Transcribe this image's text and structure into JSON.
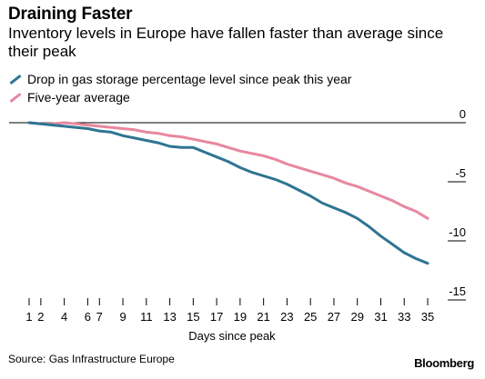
{
  "header": {
    "title": "Draining Faster",
    "subtitle": "Inventory levels in Europe have fallen faster than average since their peak"
  },
  "footer": {
    "source": "Source: Gas Infrastructure Europe",
    "brand": "Bloomberg"
  },
  "chart_data": {
    "type": "line",
    "title": "Draining Faster",
    "subtitle": "Inventory levels in Europe have fallen faster than average since their peak",
    "xlabel": "Days since peak",
    "ylabel": "",
    "xlim": [
      1,
      35
    ],
    "ylim": [
      -15,
      0
    ],
    "x_ticks": [
      1,
      2,
      4,
      6,
      7,
      9,
      11,
      13,
      15,
      17,
      19,
      21,
      23,
      25,
      27,
      29,
      31,
      33,
      35
    ],
    "y_ticks": [
      0,
      -5,
      -10,
      -15
    ],
    "y_tick_labels": [
      "0",
      "-5",
      "-10",
      "-15"
    ],
    "zero_line": true,
    "grid": false,
    "legend_position": "top-left",
    "series": [
      {
        "name": "Drop in gas storage percentage level since peak this year",
        "color": "#2e7592",
        "x": [
          1,
          2,
          3,
          4,
          5,
          6,
          7,
          8,
          9,
          10,
          11,
          12,
          13,
          14,
          15,
          16,
          17,
          18,
          19,
          20,
          21,
          22,
          23,
          24,
          25,
          26,
          27,
          28,
          29,
          30,
          31,
          32,
          33,
          34,
          35
        ],
        "values": [
          0,
          -0.1,
          -0.2,
          -0.3,
          -0.4,
          -0.5,
          -0.7,
          -0.8,
          -1.1,
          -1.3,
          -1.5,
          -1.7,
          -2.0,
          -2.1,
          -2.1,
          -2.5,
          -2.9,
          -3.3,
          -3.8,
          -4.2,
          -4.5,
          -4.8,
          -5.2,
          -5.7,
          -6.2,
          -6.8,
          -7.2,
          -7.6,
          -8.1,
          -8.8,
          -9.6,
          -10.3,
          -11.0,
          -11.5,
          -11.9
        ]
      },
      {
        "name": "Five-year average",
        "color": "#e8879f",
        "x": [
          1,
          2,
          3,
          4,
          5,
          6,
          7,
          8,
          9,
          10,
          11,
          12,
          13,
          14,
          15,
          16,
          17,
          18,
          19,
          20,
          21,
          22,
          23,
          24,
          25,
          26,
          27,
          28,
          29,
          30,
          31,
          32,
          33,
          34,
          35
        ],
        "values": [
          0,
          -0.1,
          -0.1,
          0,
          -0.1,
          -0.2,
          -0.3,
          -0.4,
          -0.5,
          -0.6,
          -0.8,
          -0.9,
          -1.1,
          -1.2,
          -1.4,
          -1.6,
          -1.8,
          -2.1,
          -2.4,
          -2.6,
          -2.8,
          -3.1,
          -3.5,
          -3.8,
          -4.1,
          -4.4,
          -4.7,
          -5.1,
          -5.4,
          -5.8,
          -6.2,
          -6.6,
          -7.1,
          -7.5,
          -8.1
        ]
      }
    ]
  }
}
